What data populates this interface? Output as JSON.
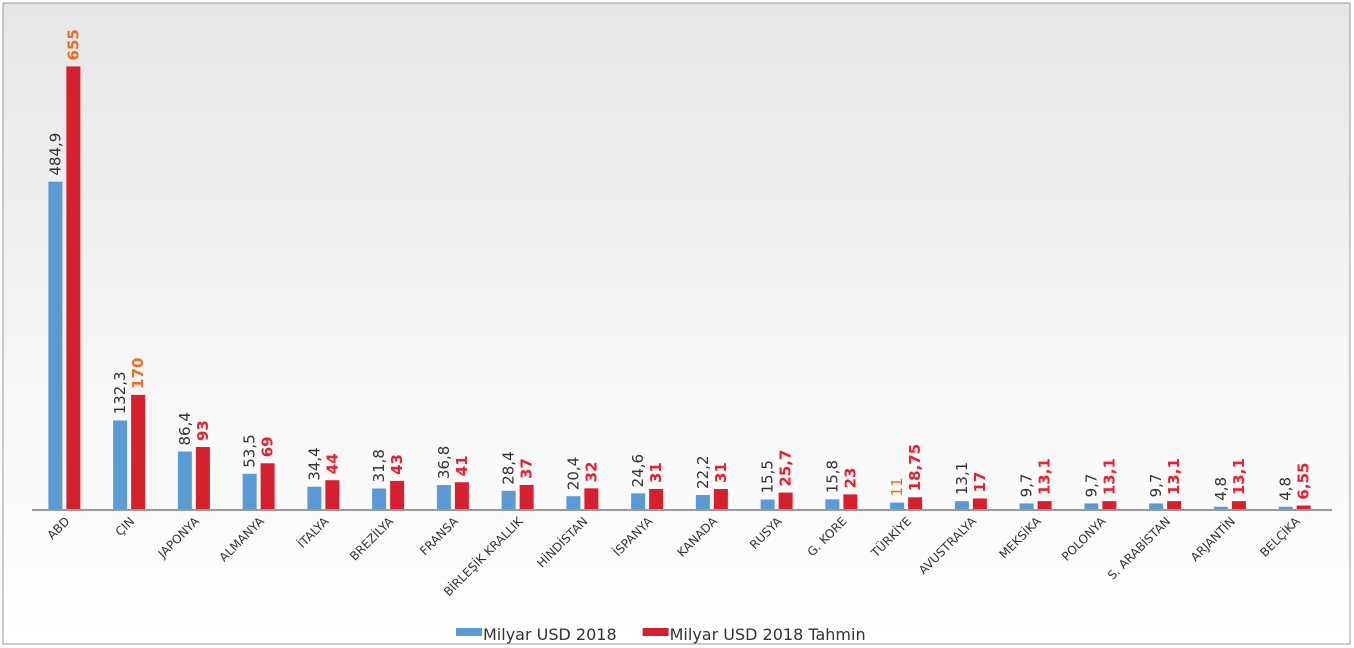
{
  "chart_data": {
    "type": "bar",
    "categories": [
      "ABD",
      "ÇIN",
      "JAPONYA",
      "ALMANYA",
      "İTALYA",
      "BREZİLYA",
      "FRANSA",
      "BİRLEŞİK KRALLIK",
      "HİNDİSTAN",
      "İSPANYA",
      "KANADA",
      "RUSYA",
      "G. KORE",
      "TÜRKİYE",
      "AVUSTRALYA",
      "MEKSİKA",
      "POLONYA",
      "S. ARABİSTAN",
      "ARJANTİN",
      "BELÇİKA"
    ],
    "series": [
      {
        "name": "Milyar USD 2018",
        "color": "#5b9bd5",
        "values": [
          484.9,
          132.3,
          86.4,
          53.5,
          34.4,
          31.8,
          36.8,
          28.4,
          20.4,
          24.6,
          22.2,
          15.5,
          15.8,
          11,
          13.1,
          9.7,
          9.7,
          9.7,
          4.8,
          4.8
        ],
        "value_labels": [
          "484,9",
          "132,3",
          "86,4",
          "53,5",
          "34,4",
          "31,8",
          "36,8",
          "28,4",
          "20,4",
          "24,6",
          "22,2",
          "15,5",
          "15,8",
          "11",
          "13,1",
          "9,7",
          "9,7",
          "9,7",
          "4,8",
          "4,8"
        ],
        "label_colors": [
          "#333333",
          "#333333",
          "#333333",
          "#333333",
          "#333333",
          "#333333",
          "#333333",
          "#333333",
          "#333333",
          "#333333",
          "#333333",
          "#333333",
          "#333333",
          "#f06b22",
          "#333333",
          "#333333",
          "#333333",
          "#333333",
          "#333333",
          "#333333"
        ]
      },
      {
        "name": "Milyar USD 2018 Tahmin",
        "color": "#d7202f",
        "values": [
          655,
          170,
          93,
          69,
          44,
          43,
          41,
          37,
          32,
          31,
          31,
          25.7,
          23,
          18.75,
          17,
          13.1,
          13.1,
          13.1,
          13.1,
          6.55
        ],
        "value_labels": [
          "655",
          "170",
          "93",
          "69",
          "44",
          "43",
          "41",
          "37",
          "32",
          "31",
          "31",
          "25,7",
          "23",
          "18,75",
          "17",
          "13,1",
          "13,1",
          "13,1",
          "13,1",
          "6,55"
        ],
        "label_colors": [
          "#f06b22",
          "#f06b22",
          "#e8202f",
          "#e8202f",
          "#e8202f",
          "#e8202f",
          "#e8202f",
          "#e8202f",
          "#e8202f",
          "#e8202f",
          "#e8202f",
          "#e8202f",
          "#e8202f",
          "#e8202f",
          "#e8202f",
          "#e8202f",
          "#e8202f",
          "#e8202f",
          "#e8202f",
          "#e8202f"
        ]
      }
    ],
    "ylim": [
      0,
      700
    ],
    "legend": "bottom"
  }
}
